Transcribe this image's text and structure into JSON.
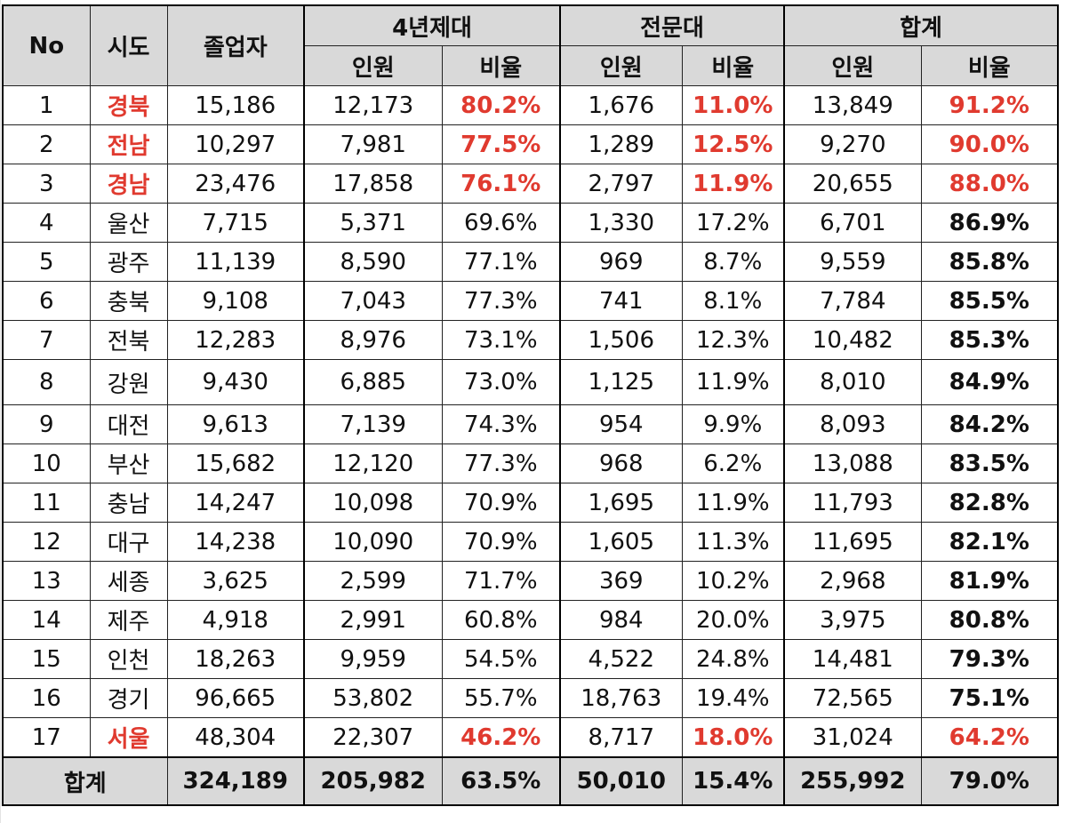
{
  "headers": {
    "no": "No",
    "region": "시도",
    "graduates": "졸업자",
    "group_4yr": "4년제대",
    "group_college": "전문대",
    "group_total": "합계",
    "count": "인원",
    "ratio": "비율"
  },
  "rows": [
    {
      "no": "1",
      "region": "경북",
      "graduates": "15,186",
      "u4_count": "12,173",
      "u4_ratio": "80.2%",
      "jc_count": "1,676",
      "jc_ratio": "11.0%",
      "tot_count": "13,849",
      "tot_ratio": "91.2%",
      "highlight": true
    },
    {
      "no": "2",
      "region": "전남",
      "graduates": "10,297",
      "u4_count": "7,981",
      "u4_ratio": "77.5%",
      "jc_count": "1,289",
      "jc_ratio": "12.5%",
      "tot_count": "9,270",
      "tot_ratio": "90.0%",
      "highlight": true
    },
    {
      "no": "3",
      "region": "경남",
      "graduates": "23,476",
      "u4_count": "17,858",
      "u4_ratio": "76.1%",
      "jc_count": "2,797",
      "jc_ratio": "11.9%",
      "tot_count": "20,655",
      "tot_ratio": "88.0%",
      "highlight": true
    },
    {
      "no": "4",
      "region": "울산",
      "graduates": "7,715",
      "u4_count": "5,371",
      "u4_ratio": "69.6%",
      "jc_count": "1,330",
      "jc_ratio": "17.2%",
      "tot_count": "6,701",
      "tot_ratio": "86.9%"
    },
    {
      "no": "5",
      "region": "광주",
      "graduates": "11,139",
      "u4_count": "8,590",
      "u4_ratio": "77.1%",
      "jc_count": "969",
      "jc_ratio": "8.7%",
      "tot_count": "9,559",
      "tot_ratio": "85.8%"
    },
    {
      "no": "6",
      "region": "충북",
      "graduates": "9,108",
      "u4_count": "7,043",
      "u4_ratio": "77.3%",
      "jc_count": "741",
      "jc_ratio": "8.1%",
      "tot_count": "7,784",
      "tot_ratio": "85.5%"
    },
    {
      "no": "7",
      "region": "전북",
      "graduates": "12,283",
      "u4_count": "8,976",
      "u4_ratio": "73.1%",
      "jc_count": "1,506",
      "jc_ratio": "12.3%",
      "tot_count": "10,482",
      "tot_ratio": "85.3%"
    },
    {
      "no": "8",
      "region": "강원",
      "graduates": "9,430",
      "u4_count": "6,885",
      "u4_ratio": "73.0%",
      "jc_count": "1,125",
      "jc_ratio": "11.9%",
      "tot_count": "8,010",
      "tot_ratio": "84.9%"
    },
    {
      "no": "9",
      "region": "대전",
      "graduates": "9,613",
      "u4_count": "7,139",
      "u4_ratio": "74.3%",
      "jc_count": "954",
      "jc_ratio": "9.9%",
      "tot_count": "8,093",
      "tot_ratio": "84.2%"
    },
    {
      "no": "10",
      "region": "부산",
      "graduates": "15,682",
      "u4_count": "12,120",
      "u4_ratio": "77.3%",
      "jc_count": "968",
      "jc_ratio": "6.2%",
      "tot_count": "13,088",
      "tot_ratio": "83.5%"
    },
    {
      "no": "11",
      "region": "충남",
      "graduates": "14,247",
      "u4_count": "10,098",
      "u4_ratio": "70.9%",
      "jc_count": "1,695",
      "jc_ratio": "11.9%",
      "tot_count": "11,793",
      "tot_ratio": "82.8%"
    },
    {
      "no": "12",
      "region": "대구",
      "graduates": "14,238",
      "u4_count": "10,090",
      "u4_ratio": "70.9%",
      "jc_count": "1,605",
      "jc_ratio": "11.3%",
      "tot_count": "11,695",
      "tot_ratio": "82.1%"
    },
    {
      "no": "13",
      "region": "세종",
      "graduates": "3,625",
      "u4_count": "2,599",
      "u4_ratio": "71.7%",
      "jc_count": "369",
      "jc_ratio": "10.2%",
      "tot_count": "2,968",
      "tot_ratio": "81.9%"
    },
    {
      "no": "14",
      "region": "제주",
      "graduates": "4,918",
      "u4_count": "2,991",
      "u4_ratio": "60.8%",
      "jc_count": "984",
      "jc_ratio": "20.0%",
      "tot_count": "3,975",
      "tot_ratio": "80.8%"
    },
    {
      "no": "15",
      "region": "인천",
      "graduates": "18,263",
      "u4_count": "9,959",
      "u4_ratio": "54.5%",
      "jc_count": "4,522",
      "jc_ratio": "24.8%",
      "tot_count": "14,481",
      "tot_ratio": "79.3%"
    },
    {
      "no": "16",
      "region": "경기",
      "graduates": "96,665",
      "u4_count": "53,802",
      "u4_ratio": "55.7%",
      "jc_count": "18,763",
      "jc_ratio": "19.4%",
      "tot_count": "72,565",
      "tot_ratio": "75.1%"
    },
    {
      "no": "17",
      "region": "서울",
      "graduates": "48,304",
      "u4_count": "22,307",
      "u4_ratio": "46.2%",
      "jc_count": "8,717",
      "jc_ratio": "18.0%",
      "tot_count": "31,024",
      "tot_ratio": "64.2%",
      "highlight": true
    }
  ],
  "total": {
    "label": "합계",
    "graduates": "324,189",
    "u4_count": "205,982",
    "u4_ratio": "63.5%",
    "jc_count": "50,010",
    "jc_ratio": "15.4%",
    "tot_count": "255,992",
    "tot_ratio": "79.0%"
  },
  "colors": {
    "highlight_red": "#e03a2f",
    "header_bg": "#d9d9d9"
  }
}
